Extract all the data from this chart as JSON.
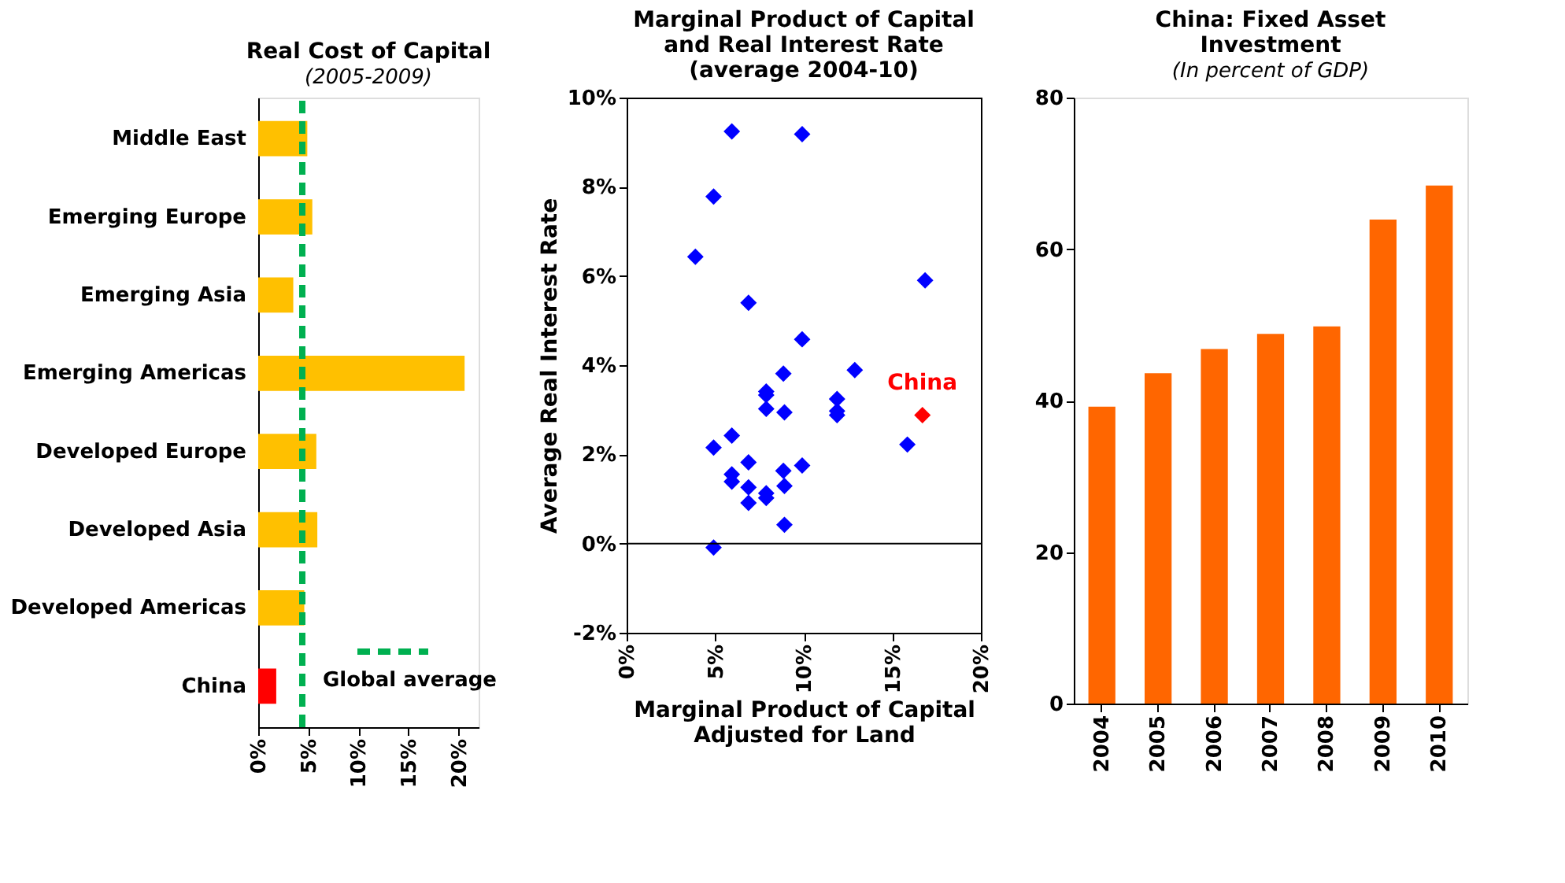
{
  "chart_data": [
    {
      "type": "bar",
      "title": "Real Cost of Capital",
      "subtitle": "(2005-2009)",
      "orientation": "horizontal",
      "categories": [
        "Middle East",
        "Emerging Europe",
        "Emerging Asia",
        "Emerging Americas",
        "Developed Europe",
        "Developed Asia",
        "Developed Americas",
        "China"
      ],
      "values": [
        4.9,
        5.4,
        3.5,
        20.6,
        5.8,
        5.9,
        4.6,
        1.8
      ],
      "colors": [
        "#ffc000",
        "#ffc000",
        "#ffc000",
        "#ffc000",
        "#ffc000",
        "#ffc000",
        "#ffc000",
        "#ff0000"
      ],
      "xlim": [
        0,
        22
      ],
      "xticks": [
        {
          "value": 0,
          "label": "0%"
        },
        {
          "value": 5,
          "label": "5%"
        },
        {
          "value": 10,
          "label": "10%"
        },
        {
          "value": 15,
          "label": "15%"
        },
        {
          "value": 20,
          "label": "20%"
        }
      ],
      "ref_lines": [
        {
          "axis": "x",
          "value": 4.4,
          "label": "Global average",
          "color": "#00b050",
          "line_style": "dashed"
        }
      ],
      "legend": "bottom right"
    },
    {
      "type": "scatter",
      "title": "Marginal Product of Capital\nand Real Interest Rate\n(average 2004-10)",
      "xlabel": "Marginal Product of Capital\nAdjusted for Land",
      "ylabel": "Average Real Interest Rate",
      "marker": "diamond",
      "series": [
        {
          "color": "#0000ff",
          "x": [
            5.94,
            9.91,
            4.91,
            3.88,
            16.85,
            6.88,
            9.91,
            8.85,
            12.88,
            7.88,
            7.88,
            11.88,
            7.88,
            8.91,
            11.88,
            11.88,
            15.85,
            5.94,
            4.91,
            6.88,
            9.91,
            8.85,
            5.94,
            5.94,
            6.88,
            8.91,
            7.88,
            7.88,
            6.88,
            8.91,
            4.91
          ],
          "values": [
            9.24,
            9.18,
            7.78,
            6.43,
            5.9,
            5.4,
            4.58,
            3.81,
            3.89,
            3.41,
            3.33,
            3.24,
            3.02,
            2.94,
            2.97,
            2.88,
            2.22,
            2.42,
            2.15,
            1.82,
            1.75,
            1.63,
            1.55,
            1.39,
            1.26,
            1.29,
            1.13,
            1.02,
            0.91,
            0.42,
            -0.09
          ]
        },
        {
          "name": "China",
          "color": "#ff0000",
          "x": [
            16.7
          ],
          "values": [
            2.88
          ]
        }
      ],
      "xlim": [
        0,
        20
      ],
      "ylim": [
        -2,
        10
      ],
      "xticks": [
        {
          "value": 0,
          "label": "0%"
        },
        {
          "value": 5,
          "label": "5%"
        },
        {
          "value": 10,
          "label": "10%"
        },
        {
          "value": 15,
          "label": "15%"
        },
        {
          "value": 20,
          "label": "20%"
        }
      ],
      "yticks": [
        {
          "value": -2,
          "label": "-2%"
        },
        {
          "value": 0,
          "label": "0%"
        },
        {
          "value": 2,
          "label": "2%"
        },
        {
          "value": 4,
          "label": "4%"
        },
        {
          "value": 6,
          "label": "6%"
        },
        {
          "value": 8,
          "label": "8%"
        },
        {
          "value": 10,
          "label": "10%"
        }
      ],
      "ref_lines": [
        {
          "axis": "y",
          "value": 0,
          "color": "#000000",
          "line_style": "solid"
        }
      ]
    },
    {
      "type": "bar",
      "title": "China: Fixed Asset\nInvestment",
      "subtitle": "(In percent of GDP)",
      "categories": [
        "2004",
        "2005",
        "2006",
        "2007",
        "2008",
        "2009",
        "2010"
      ],
      "values": [
        39.2,
        43.6,
        46.8,
        48.8,
        49.8,
        63.9,
        68.4
      ],
      "color": "#ff6600",
      "ylim": [
        0,
        80
      ],
      "yticks": [
        0,
        20,
        40,
        60,
        80
      ]
    }
  ]
}
